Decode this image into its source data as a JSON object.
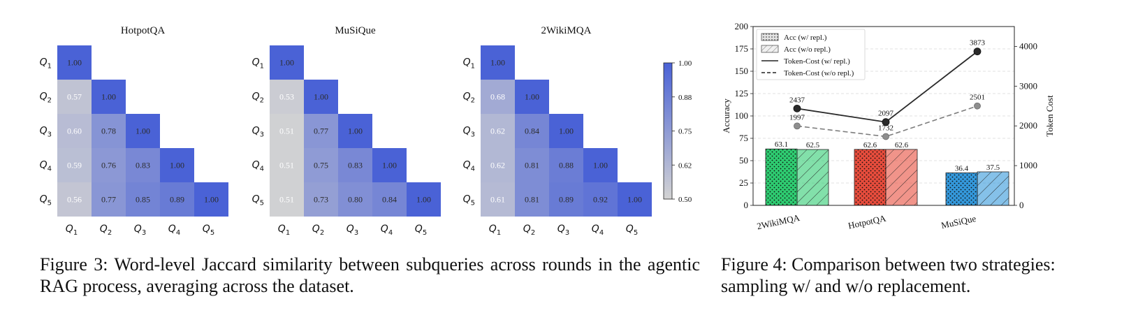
{
  "chart_data": [
    {
      "type": "heatmap",
      "title": "HotpotQA",
      "row_labels": [
        "Q1",
        "Q2",
        "Q3",
        "Q4",
        "Q5"
      ],
      "col_labels": [
        "Q1",
        "Q2",
        "Q3",
        "Q4",
        "Q5"
      ],
      "values": [
        [
          1.0
        ],
        [
          0.57,
          1.0
        ],
        [
          0.6,
          0.78,
          1.0
        ],
        [
          0.59,
          0.76,
          0.83,
          1.0
        ],
        [
          0.56,
          0.77,
          0.85,
          0.89,
          1.0
        ]
      ]
    },
    {
      "type": "heatmap",
      "title": "MuSiQue",
      "row_labels": [
        "Q1",
        "Q2",
        "Q3",
        "Q4",
        "Q5"
      ],
      "col_labels": [
        "Q1",
        "Q2",
        "Q3",
        "Q4",
        "Q5"
      ],
      "values": [
        [
          1.0
        ],
        [
          0.53,
          1.0
        ],
        [
          0.51,
          0.77,
          1.0
        ],
        [
          0.51,
          0.75,
          0.83,
          1.0
        ],
        [
          0.51,
          0.73,
          0.8,
          0.84,
          1.0
        ]
      ]
    },
    {
      "type": "heatmap",
      "title": "2WikiMQA",
      "row_labels": [
        "Q1",
        "Q2",
        "Q3",
        "Q4",
        "Q5"
      ],
      "col_labels": [
        "Q1",
        "Q2",
        "Q3",
        "Q4",
        "Q5"
      ],
      "values": [
        [
          1.0
        ],
        [
          0.68,
          1.0
        ],
        [
          0.62,
          0.84,
          1.0
        ],
        [
          0.62,
          0.81,
          0.88,
          1.0
        ],
        [
          0.61,
          0.81,
          0.89,
          0.92,
          1.0
        ]
      ],
      "colorbar": {
        "min": 0.5,
        "max": 1.0,
        "ticks": [
          "0.50",
          "0.62",
          "0.75",
          "0.88",
          "1.00"
        ]
      }
    },
    {
      "type": "bar",
      "categories": [
        "2WikiMQA",
        "HotpotQA",
        "MuSiQue"
      ],
      "ylabel": "Accuracy",
      "ylim": [
        0,
        200
      ],
      "yticks": [
        0,
        25,
        50,
        75,
        100,
        125,
        150,
        175,
        200
      ],
      "y2label": "Token Cost",
      "y2lim": [
        0,
        4500
      ],
      "y2ticks": [
        0,
        1000,
        2000,
        3000,
        4000
      ],
      "grid": true,
      "legend_position": "top-left",
      "colors": [
        "#2ecc71",
        "#e74c3c",
        "#3498db"
      ],
      "series": [
        {
          "name": "Acc (w/ repl.)",
          "kind": "bar",
          "hatch": "dots",
          "values": [
            63.1,
            62.6,
            36.4
          ],
          "labels": [
            "63.1",
            "62.6",
            "36.4"
          ]
        },
        {
          "name": "Acc (w/o repl.)",
          "kind": "bar",
          "hatch": "diagonal",
          "values": [
            62.5,
            62.6,
            37.5
          ],
          "labels": [
            "62.5",
            "62.6",
            "37.5"
          ]
        },
        {
          "name": "Token-Cost (w/ repl.)",
          "kind": "line",
          "axis": "right",
          "style": "solid",
          "values": [
            2437,
            2097,
            3873
          ]
        },
        {
          "name": "Token-Cost (w/o repl.)",
          "kind": "line",
          "axis": "right",
          "style": "dashed",
          "values": [
            1997,
            1732,
            2501
          ]
        }
      ]
    }
  ],
  "captions": {
    "fig3": "Figure 3: Word-level Jaccard similarity between subqueries across rounds in the agentic RAG process, averaging across the dataset.",
    "fig4": "Figure 4: Comparison between two strategies: sampling w/ and w/o replacement."
  }
}
